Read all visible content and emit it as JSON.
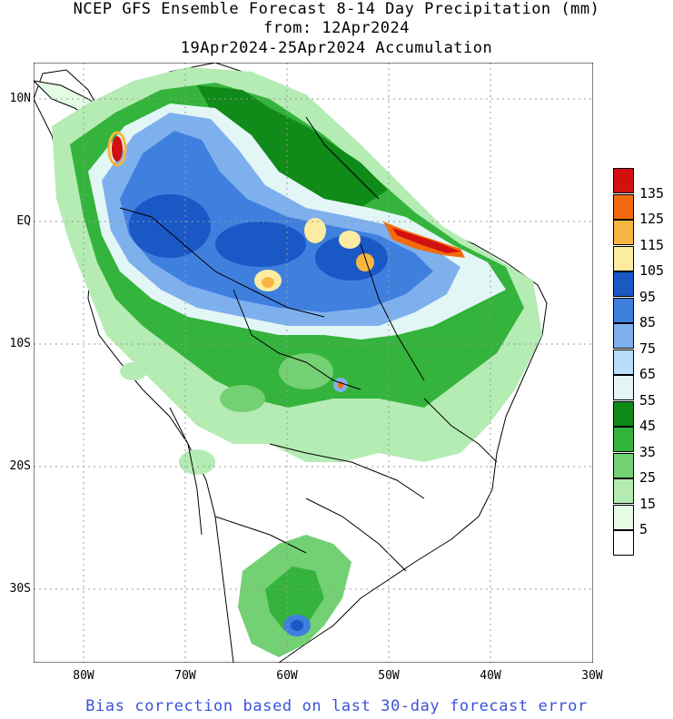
{
  "header": {
    "title_line1": "NCEP GFS Ensemble Forecast 8-14 Day Precipitation (mm)",
    "title_line2": "from: 12Apr2024",
    "title_line3": "19Apr2024-25Apr2024 Accumulation"
  },
  "axes": {
    "lat_labels": [
      "10N",
      "EQ",
      "10S",
      "20S",
      "30S"
    ],
    "lon_labels": [
      "80W",
      "70W",
      "60W",
      "50W",
      "40W",
      "30W"
    ]
  },
  "legend": {
    "labels": [
      "135",
      "125",
      "115",
      "105",
      "95",
      "85",
      "75",
      "65",
      "55",
      "45",
      "35",
      "25",
      "15",
      "5"
    ],
    "colors": [
      "#d21010",
      "#f26a10",
      "#f7b641",
      "#fbeca2",
      "#1a58c6",
      "#3f80df",
      "#7fb0ee",
      "#b9ddfa",
      "#e3f6f6",
      "#108a18",
      "#34b43c",
      "#73d073",
      "#b4ecb4",
      "#e4fbe4",
      "#ffffff"
    ]
  },
  "map": {
    "land_color": "#ffffff",
    "border_color": "#000000",
    "grid_color": "#999999"
  },
  "footnote": "Bias correction based on last 30-day forecast error"
}
